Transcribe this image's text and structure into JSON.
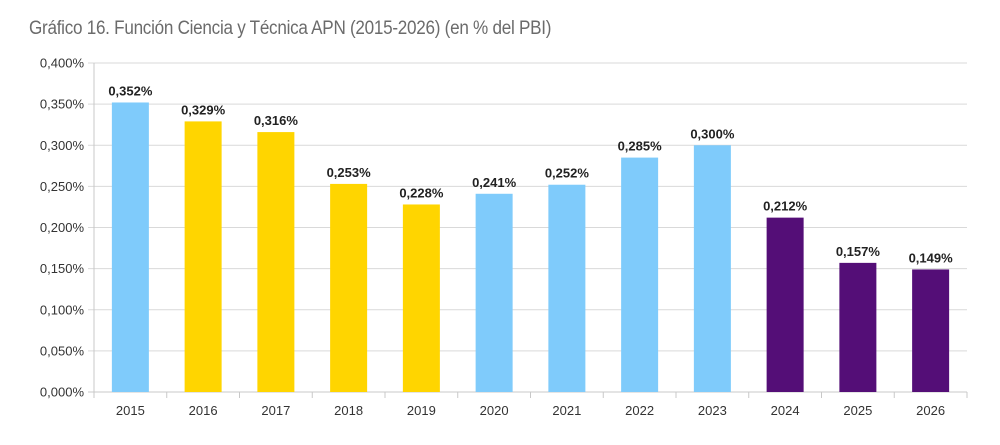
{
  "chart_data": {
    "type": "bar",
    "title": "Gráfico 16. Función Ciencia y Técnica APN (2015-2026) (en % del PBI)",
    "xlabel": "",
    "ylabel": "",
    "ylim": [
      0,
      0.4
    ],
    "yticks": [
      0,
      0.05,
      0.1,
      0.15,
      0.2,
      0.25,
      0.3,
      0.35,
      0.4
    ],
    "ytick_labels": [
      "0,000%",
      "0,050%",
      "0,100%",
      "0,150%",
      "0,200%",
      "0,250%",
      "0,300%",
      "0,350%",
      "0,400%"
    ],
    "grid": true,
    "legend": "none",
    "categories": [
      "2015",
      "2016",
      "2017",
      "2018",
      "2019",
      "2020",
      "2021",
      "2022",
      "2023",
      "2024",
      "2025",
      "2026"
    ],
    "values": [
      0.352,
      0.329,
      0.316,
      0.253,
      0.228,
      0.241,
      0.252,
      0.285,
      0.3,
      0.212,
      0.157,
      0.149
    ],
    "data_labels": [
      "0,352%",
      "0,329%",
      "0,316%",
      "0,253%",
      "0,228%",
      "0,241%",
      "0,252%",
      "0,285%",
      "0,300%",
      "0,212%",
      "0,157%",
      "0,149%"
    ],
    "bar_colors": [
      "#7FCBFB",
      "#FFD500",
      "#FFD500",
      "#FFD500",
      "#FFD500",
      "#7FCBFB",
      "#7FCBFB",
      "#7FCBFB",
      "#7FCBFB",
      "#540E77",
      "#540E77",
      "#540E77"
    ]
  },
  "colors": {
    "grid": "#d9d9d9",
    "axis": "#c8c8c8"
  }
}
